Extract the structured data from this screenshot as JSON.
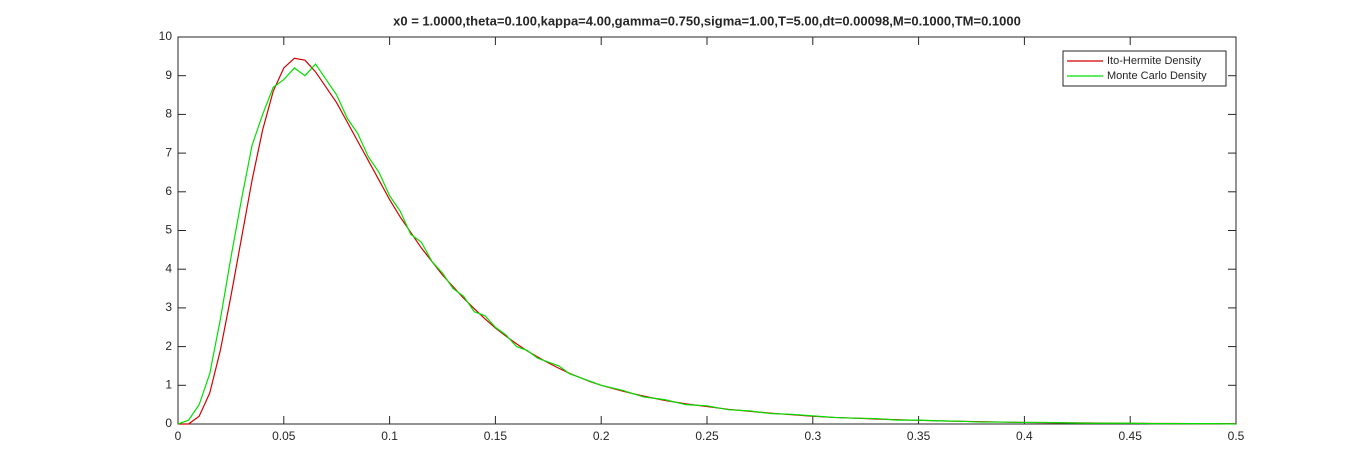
{
  "chart_data": {
    "type": "line",
    "title": "x0 = 1.0000,theta=0.100,kappa=4.00,gamma=0.750,sigma=1.00,T=5.00,dt=0.00098,M=0.1000,TM=0.1000",
    "x": [
      0,
      0.005,
      0.01,
      0.015,
      0.02,
      0.025,
      0.03,
      0.035,
      0.04,
      0.045,
      0.05,
      0.055,
      0.06,
      0.065,
      0.07,
      0.075,
      0.08,
      0.085,
      0.09,
      0.095,
      0.1,
      0.105,
      0.11,
      0.115,
      0.12,
      0.125,
      0.13,
      0.135,
      0.14,
      0.145,
      0.15,
      0.155,
      0.16,
      0.165,
      0.17,
      0.175,
      0.18,
      0.185,
      0.19,
      0.195,
      0.2,
      0.21,
      0.22,
      0.23,
      0.24,
      0.25,
      0.26,
      0.27,
      0.28,
      0.29,
      0.3,
      0.31,
      0.32,
      0.33,
      0.34,
      0.35,
      0.36,
      0.37,
      0.38,
      0.39,
      0.4,
      0.41,
      0.42,
      0.43,
      0.44,
      0.45,
      0.46,
      0.47,
      0.48,
      0.49,
      0.5
    ],
    "series": [
      {
        "name": "Ito-Hermite Density",
        "color": "#d40000",
        "values": [
          0,
          0,
          0.2,
          0.8,
          1.9,
          3.3,
          4.8,
          6.3,
          7.6,
          8.6,
          9.2,
          9.45,
          9.4,
          9.1,
          8.7,
          8.3,
          7.8,
          7.3,
          6.8,
          6.3,
          5.8,
          5.35,
          4.95,
          4.55,
          4.2,
          3.85,
          3.55,
          3.25,
          2.98,
          2.72,
          2.48,
          2.27,
          2.07,
          1.89,
          1.73,
          1.58,
          1.44,
          1.31,
          1.2,
          1.09,
          1.0,
          0.85,
          0.72,
          0.61,
          0.52,
          0.45,
          0.38,
          0.33,
          0.28,
          0.24,
          0.2,
          0.17,
          0.15,
          0.13,
          0.11,
          0.095,
          0.08,
          0.07,
          0.06,
          0.05,
          0.04,
          0.035,
          0.03,
          0.025,
          0.02,
          0.018,
          0.015,
          0.012,
          0.01,
          0.009,
          0.008
        ]
      },
      {
        "name": "Monte Carlo Density",
        "color": "#00e000",
        "values": [
          0,
          0.1,
          0.5,
          1.3,
          2.7,
          4.3,
          5.8,
          7.2,
          8.0,
          8.7,
          8.9,
          9.2,
          9.0,
          9.3,
          8.9,
          8.5,
          7.9,
          7.5,
          6.9,
          6.5,
          5.9,
          5.5,
          4.9,
          4.7,
          4.2,
          3.9,
          3.5,
          3.3,
          2.9,
          2.8,
          2.5,
          2.3,
          2.0,
          1.9,
          1.7,
          1.6,
          1.5,
          1.3,
          1.2,
          1.1,
          1.0,
          0.87,
          0.7,
          0.63,
          0.5,
          0.47,
          0.37,
          0.34,
          0.27,
          0.25,
          0.21,
          0.17,
          0.15,
          0.14,
          0.1,
          0.1,
          0.08,
          0.07,
          0.05,
          0.05,
          0.04,
          0.04,
          0.03,
          0.02,
          0.02,
          0.02,
          0.01,
          0.01,
          0.01,
          0.01,
          0
        ]
      }
    ],
    "xlim": [
      0,
      0.5
    ],
    "ylim": [
      0,
      10
    ],
    "xticks": [
      0,
      0.05,
      0.1,
      0.15,
      0.2,
      0.25,
      0.3,
      0.35,
      0.4,
      0.45,
      0.5
    ],
    "yticks": [
      0,
      1,
      2,
      3,
      4,
      5,
      6,
      7,
      8,
      9,
      10
    ],
    "grid": false,
    "legend": "northeast"
  }
}
